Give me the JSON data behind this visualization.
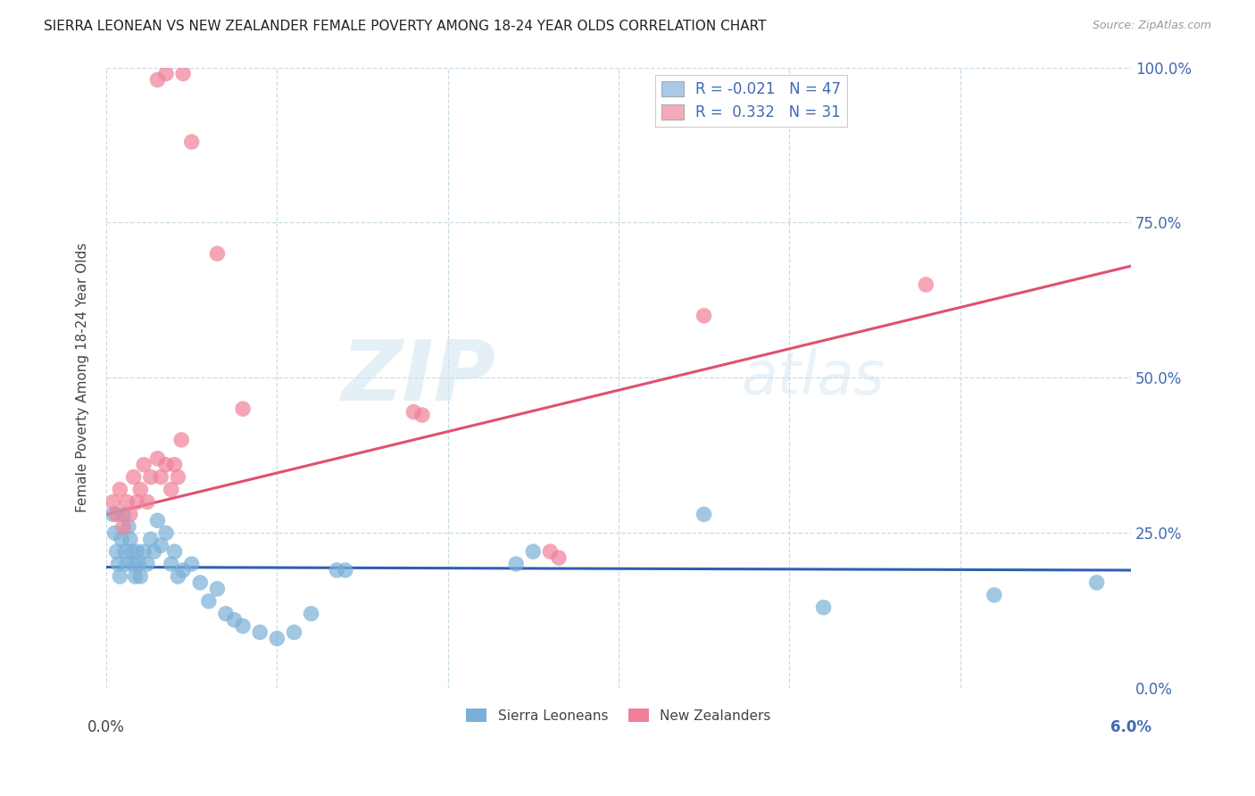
{
  "title": "SIERRA LEONEAN VS NEW ZEALANDER FEMALE POVERTY AMONG 18-24 YEAR OLDS CORRELATION CHART",
  "source": "Source: ZipAtlas.com",
  "ylabel": "Female Poverty Among 18-24 Year Olds",
  "yticks": [
    "0.0%",
    "25.0%",
    "50.0%",
    "75.0%",
    "100.0%"
  ],
  "ytick_vals": [
    0.0,
    25.0,
    50.0,
    75.0,
    100.0
  ],
  "xtick_labels_bottom": [
    "0.0%",
    "",
    "",
    "",
    "",
    "",
    "6.0%"
  ],
  "xlim": [
    0.0,
    6.0
  ],
  "ylim": [
    0.0,
    100.0
  ],
  "watermark_zip": "ZIP",
  "watermark_atlas": "atlas",
  "legend_entry1_label": "R = -0.021   N = 47",
  "legend_entry2_label": "R =  0.332   N = 31",
  "legend_color1": "#aac8e8",
  "legend_color2": "#f5aabb",
  "sierra_color": "#7ab0d8",
  "nz_color": "#f08098",
  "sierra_line_color": "#3060b0",
  "nz_line_color": "#e05070",
  "grid_color": "#c8dce8",
  "background_color": "#ffffff",
  "sierra_line_y0": 19.5,
  "sierra_line_y1": 19.0,
  "nz_line_y0": 28.0,
  "nz_line_y1": 68.0,
  "sierra_points": [
    [
      0.04,
      28.0
    ],
    [
      0.05,
      25.0
    ],
    [
      0.06,
      22.0
    ],
    [
      0.07,
      20.0
    ],
    [
      0.08,
      18.0
    ],
    [
      0.09,
      24.0
    ],
    [
      0.1,
      28.0
    ],
    [
      0.11,
      22.0
    ],
    [
      0.12,
      20.0
    ],
    [
      0.13,
      26.0
    ],
    [
      0.14,
      24.0
    ],
    [
      0.15,
      22.0
    ],
    [
      0.16,
      20.0
    ],
    [
      0.17,
      18.0
    ],
    [
      0.18,
      22.0
    ],
    [
      0.19,
      20.0
    ],
    [
      0.2,
      18.0
    ],
    [
      0.22,
      22.0
    ],
    [
      0.24,
      20.0
    ],
    [
      0.26,
      24.0
    ],
    [
      0.28,
      22.0
    ],
    [
      0.3,
      27.0
    ],
    [
      0.32,
      23.0
    ],
    [
      0.35,
      25.0
    ],
    [
      0.38,
      20.0
    ],
    [
      0.4,
      22.0
    ],
    [
      0.42,
      18.0
    ],
    [
      0.45,
      19.0
    ],
    [
      0.5,
      20.0
    ],
    [
      0.55,
      17.0
    ],
    [
      0.6,
      14.0
    ],
    [
      0.65,
      16.0
    ],
    [
      0.7,
      12.0
    ],
    [
      0.75,
      11.0
    ],
    [
      0.8,
      10.0
    ],
    [
      0.9,
      9.0
    ],
    [
      1.0,
      8.0
    ],
    [
      1.1,
      9.0
    ],
    [
      1.2,
      12.0
    ],
    [
      1.35,
      19.0
    ],
    [
      1.4,
      19.0
    ],
    [
      2.4,
      20.0
    ],
    [
      2.5,
      22.0
    ],
    [
      3.5,
      28.0
    ],
    [
      4.2,
      13.0
    ],
    [
      5.2,
      15.0
    ],
    [
      5.8,
      17.0
    ]
  ],
  "nz_points": [
    [
      0.04,
      30.0
    ],
    [
      0.06,
      28.0
    ],
    [
      0.08,
      32.0
    ],
    [
      0.1,
      26.0
    ],
    [
      0.12,
      30.0
    ],
    [
      0.14,
      28.0
    ],
    [
      0.16,
      34.0
    ],
    [
      0.18,
      30.0
    ],
    [
      0.2,
      32.0
    ],
    [
      0.22,
      36.0
    ],
    [
      0.24,
      30.0
    ],
    [
      0.26,
      34.0
    ],
    [
      0.3,
      37.0
    ],
    [
      0.32,
      34.0
    ],
    [
      0.35,
      36.0
    ],
    [
      0.38,
      32.0
    ],
    [
      0.4,
      36.0
    ],
    [
      0.42,
      34.0
    ],
    [
      0.44,
      40.0
    ],
    [
      0.3,
      98.0
    ],
    [
      0.35,
      99.0
    ],
    [
      0.45,
      99.0
    ],
    [
      0.5,
      88.0
    ],
    [
      0.65,
      70.0
    ],
    [
      0.8,
      45.0
    ],
    [
      1.8,
      44.5
    ],
    [
      1.85,
      44.0
    ],
    [
      2.6,
      22.0
    ],
    [
      2.65,
      21.0
    ],
    [
      3.5,
      60.0
    ],
    [
      4.8,
      65.0
    ]
  ]
}
